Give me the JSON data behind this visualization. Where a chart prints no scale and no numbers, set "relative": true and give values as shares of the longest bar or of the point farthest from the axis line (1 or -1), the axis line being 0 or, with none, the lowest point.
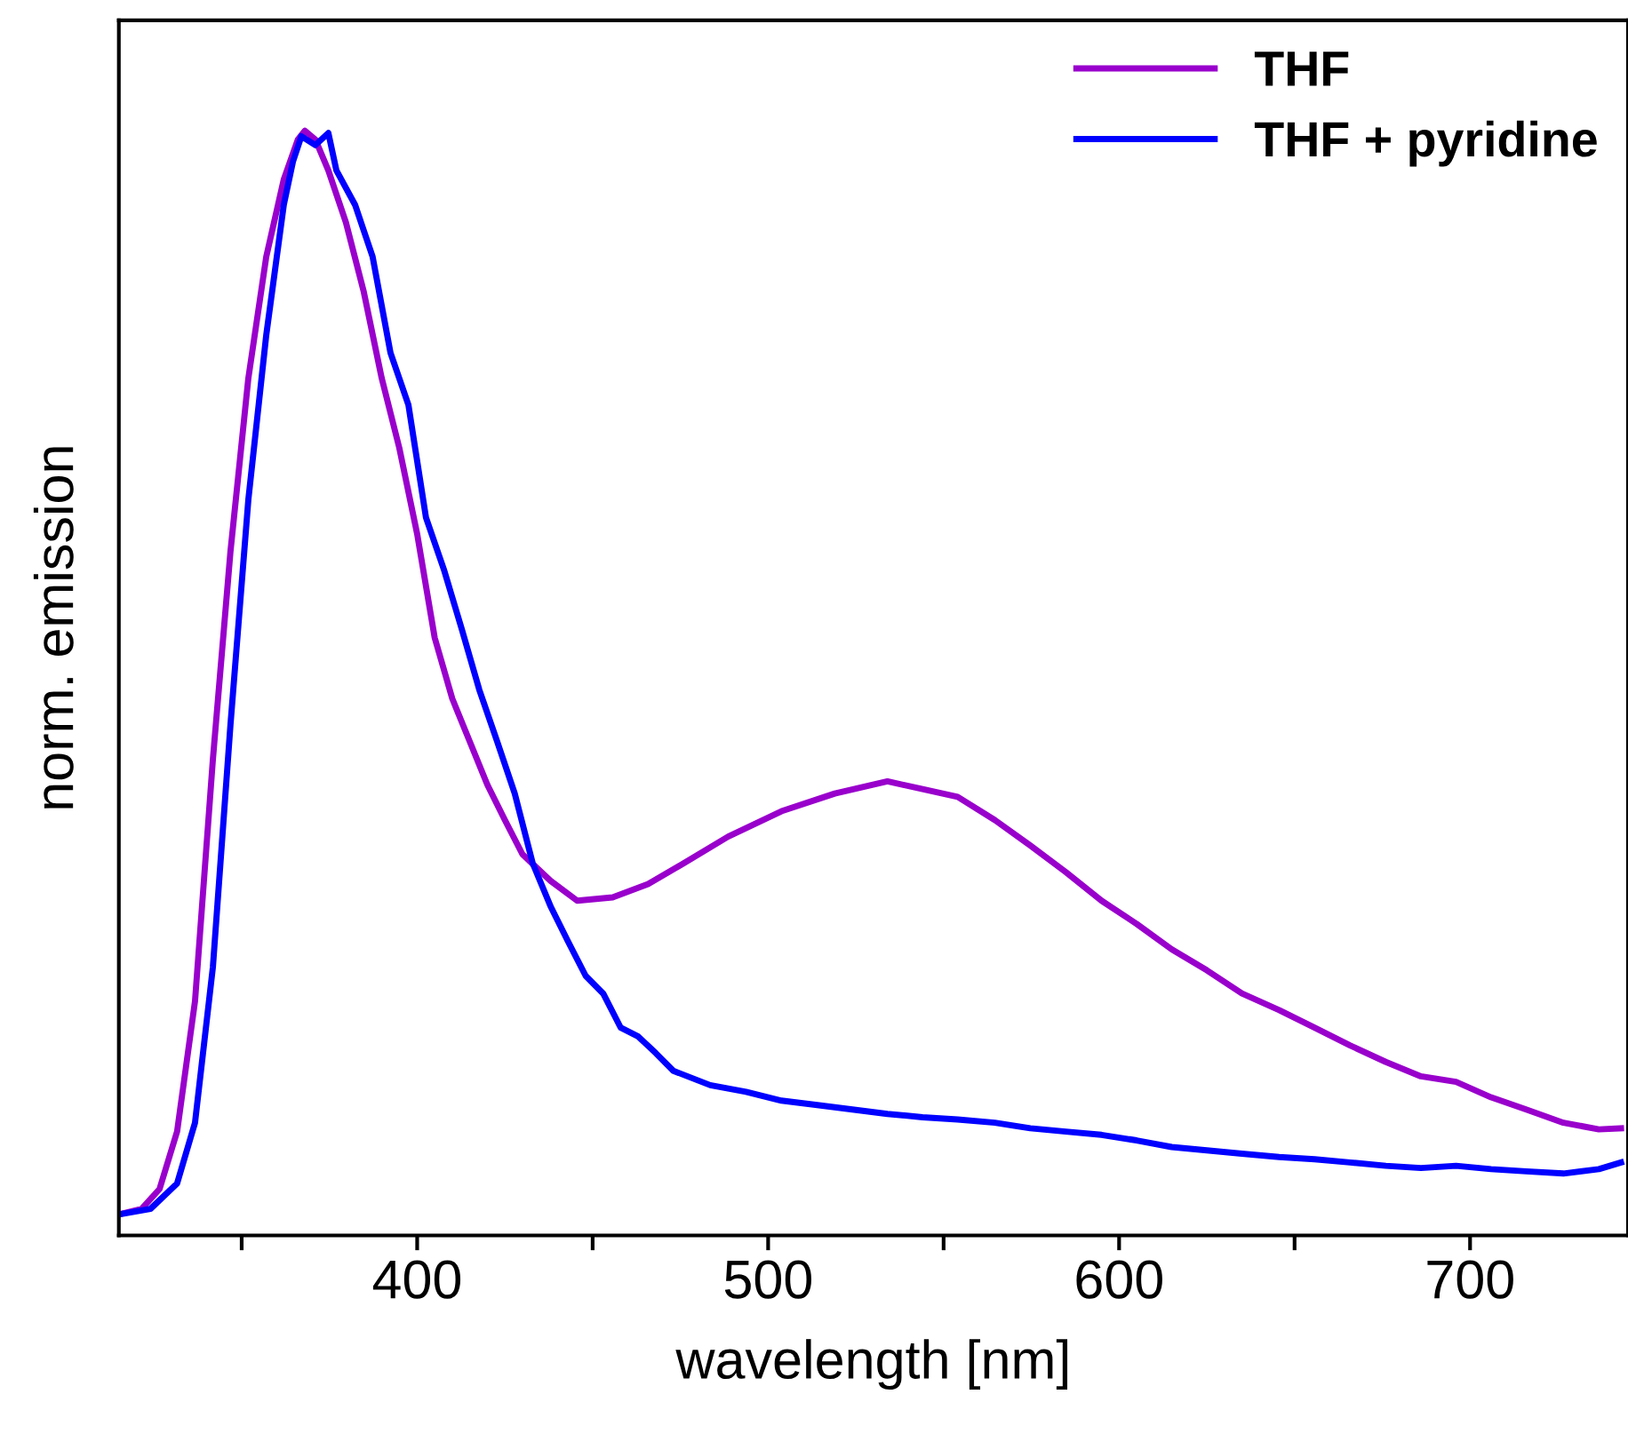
{
  "chart_data": {
    "type": "line",
    "xlabel": "wavelength [nm]",
    "ylabel": "norm. emission",
    "relative": true,
    "tick_labels": "x",
    "legend": "top right",
    "grid": false,
    "line_style": "solid",
    "marker": "none",
    "xlim": [
      315,
      745
    ],
    "xticks": [
      {
        "value": 350,
        "label": null
      },
      400,
      {
        "value": 450,
        "label": null
      },
      500,
      {
        "value": 550,
        "label": null
      },
      600,
      {
        "value": 650,
        "label": null
      },
      700
    ],
    "series": [
      {
        "name": "THF",
        "color": "#9900cc",
        "x": [
          315,
          321.5,
          326.6,
          331.6,
          336.7,
          341.8,
          346.8,
          351.9,
          357,
          362,
          366,
          368,
          371,
          374.7,
          379.7,
          384.8,
          389.9,
          394.9,
          400,
          405,
          410,
          415,
          420,
          425,
          430,
          438,
          445.6,
          455.7,
          465.8,
          476,
          488.6,
          503.8,
          519,
          534,
          544,
          554,
          564.6,
          574.7,
          584.8,
          595,
          605,
          615,
          625,
          635,
          645.6,
          655.7,
          665.8,
          676,
          686,
          696,
          706,
          716,
          726.6,
          736.7,
          743
        ],
        "values": [
          0.019,
          0.024,
          0.042,
          0.094,
          0.212,
          0.431,
          0.619,
          0.776,
          0.886,
          0.956,
          0.992,
          1,
          0.992,
          0.964,
          0.917,
          0.854,
          0.776,
          0.713,
          0.635,
          0.541,
          0.486,
          0.447,
          0.408,
          0.376,
          0.345,
          0.321,
          0.303,
          0.306,
          0.318,
          0.337,
          0.361,
          0.384,
          0.4,
          0.411,
          0.404,
          0.397,
          0.376,
          0.353,
          0.329,
          0.303,
          0.282,
          0.259,
          0.24,
          0.219,
          0.204,
          0.188,
          0.172,
          0.157,
          0.144,
          0.139,
          0.125,
          0.114,
          0.102,
          0.096,
          0.097
        ]
      },
      {
        "name": "THF + pyridine",
        "color": "#0000ff",
        "x": [
          315,
          324,
          331.6,
          336.7,
          341.8,
          346.8,
          351.9,
          357,
          362,
          364.6,
          367,
          371,
          374.7,
          377,
          382.3,
          387.3,
          392.4,
          397.5,
          402.5,
          407.6,
          412.7,
          417.7,
          422.8,
          427.8,
          432.9,
          438,
          443,
          448,
          453,
          458,
          463,
          468,
          473,
          483.5,
          493.7,
          503.8,
          514,
          524,
          534,
          544,
          554,
          564.6,
          574.7,
          584.8,
          595,
          605,
          615,
          625,
          635,
          645.6,
          655.7,
          665.8,
          676,
          686,
          696,
          706,
          716,
          726.6,
          736.7,
          743
        ],
        "values": [
          0.019,
          0.024,
          0.047,
          0.102,
          0.243,
          0.462,
          0.666,
          0.815,
          0.933,
          0.972,
          0.995,
          0.987,
          0.998,
          0.964,
          0.933,
          0.886,
          0.799,
          0.752,
          0.65,
          0.603,
          0.549,
          0.494,
          0.447,
          0.4,
          0.337,
          0.298,
          0.266,
          0.235,
          0.219,
          0.188,
          0.18,
          0.165,
          0.149,
          0.136,
          0.13,
          0.122,
          0.118,
          0.114,
          0.11,
          0.107,
          0.105,
          0.102,
          0.097,
          0.094,
          0.091,
          0.086,
          0.08,
          0.077,
          0.074,
          0.071,
          0.069,
          0.066,
          0.063,
          0.061,
          0.063,
          0.06,
          0.058,
          0.056,
          0.06,
          0.066
        ]
      }
    ]
  }
}
